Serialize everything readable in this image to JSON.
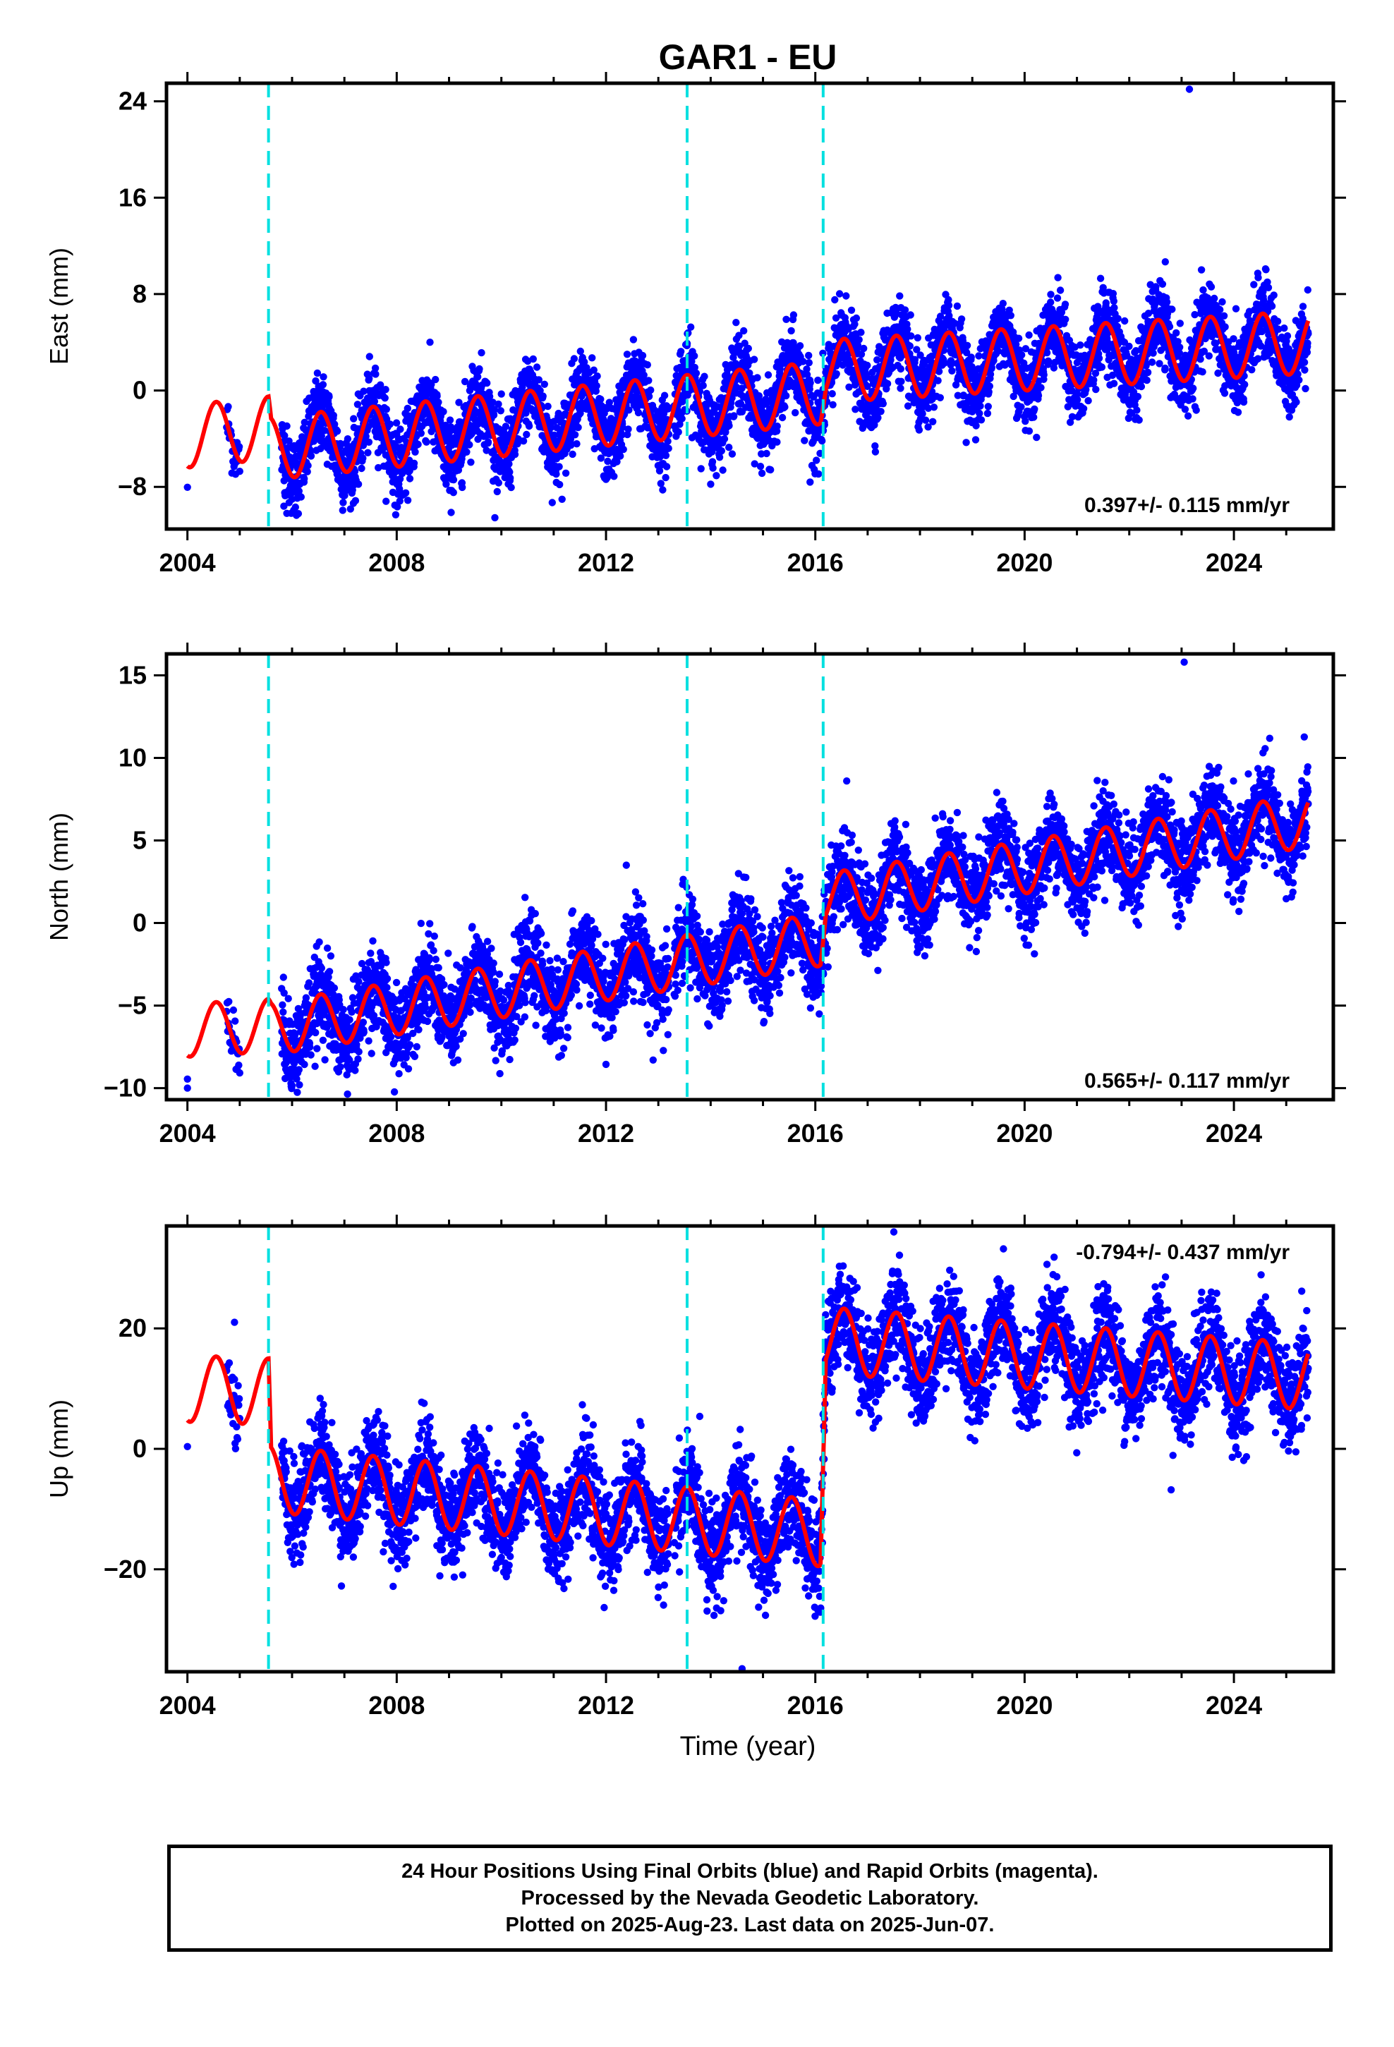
{
  "title": "GAR1 - EU",
  "xlabel": "Time (year)",
  "footer": {
    "line1": "24 Hour Positions Using Final Orbits (blue) and Rapid Orbits (magenta).",
    "line2": "Processed by the Nevada Geodetic Laboratory.",
    "line3": "Plotted on 2025-Aug-23. Last data on 2025-Jun-07."
  },
  "colors": {
    "data": "#0000ff",
    "model": "#ff0000",
    "breaks": "#00e0e0",
    "frame": "#000000"
  },
  "chart_data": [
    {
      "type": "scatter",
      "component": "east",
      "ylabel": "East (mm)",
      "xlim": [
        2003.6,
        2025.9
      ],
      "ylim": [
        -11.5,
        25.5
      ],
      "xticks": [
        2004,
        2008,
        2012,
        2016,
        2020,
        2024
      ],
      "yticks": [
        -8,
        0,
        8,
        16,
        24
      ],
      "rate_label": "0.397+/- 0.115 mm/yr",
      "breaks": [
        2005.55,
        2013.55,
        2016.15
      ],
      "model": {
        "trend_points": [
          [
            2004.0,
            -3.8
          ],
          [
            2005.55,
            -3.1
          ],
          [
            2005.6,
            -4.8
          ],
          [
            2016.1,
            -0.2
          ],
          [
            2016.2,
            1.6
          ],
          [
            2025.4,
            4.0
          ]
        ],
        "annual_amplitude": 2.6
      },
      "noise_sd": 1.6,
      "outliers": [
        [
          2023.15,
          25.0
        ],
        [
          2015.9,
          -7.6
        ],
        [
          2005.9,
          -10.2
        ]
      ]
    },
    {
      "type": "scatter",
      "component": "north",
      "ylabel": "North (mm)",
      "xlim": [
        2003.6,
        2025.9
      ],
      "ylim": [
        -10.7,
        16.3
      ],
      "xticks": [
        2004,
        2008,
        2012,
        2016,
        2020,
        2024
      ],
      "yticks": [
        -10,
        -5,
        0,
        5,
        10,
        15
      ],
      "rate_label": "0.565+/- 0.117 mm/yr",
      "breaks": [
        2005.55,
        2013.55,
        2016.15
      ],
      "model": {
        "trend_points": [
          [
            2004.0,
            -6.5
          ],
          [
            2005.55,
            -6.2
          ],
          [
            2005.6,
            -6.4
          ],
          [
            2016.1,
            -1.0
          ],
          [
            2016.2,
            1.4
          ],
          [
            2025.4,
            6.2
          ]
        ],
        "annual_amplitude": 1.6
      },
      "noise_sd": 1.3,
      "outliers": [
        [
          2023.05,
          15.8
        ],
        [
          2016.6,
          8.6
        ],
        [
          2004.0,
          -10.0
        ],
        [
          2012.9,
          -8.3
        ]
      ]
    },
    {
      "type": "scatter",
      "component": "up",
      "ylabel": "Up (mm)",
      "xlim": [
        2003.6,
        2025.9
      ],
      "ylim": [
        -37,
        37
      ],
      "xticks": [
        2004,
        2008,
        2012,
        2016,
        2020,
        2024
      ],
      "yticks": [
        -20,
        0,
        20
      ],
      "rate_label": "-0.794+/- 0.437 mm/yr",
      "breaks": [
        2005.55,
        2013.55,
        2016.15
      ],
      "model": {
        "trend_points": [
          [
            2004.0,
            10.0
          ],
          [
            2005.55,
            9.5
          ],
          [
            2005.6,
            -5.0
          ],
          [
            2016.1,
            -14.0
          ],
          [
            2016.2,
            18.0
          ],
          [
            2025.4,
            12.0
          ]
        ],
        "annual_amplitude": 5.5
      },
      "noise_sd": 4.0,
      "outliers": [
        [
          2017.5,
          36.0
        ],
        [
          2014.6,
          -36.5
        ],
        [
          2022.8,
          -6.8
        ],
        [
          2004.9,
          21.0
        ]
      ]
    }
  ]
}
